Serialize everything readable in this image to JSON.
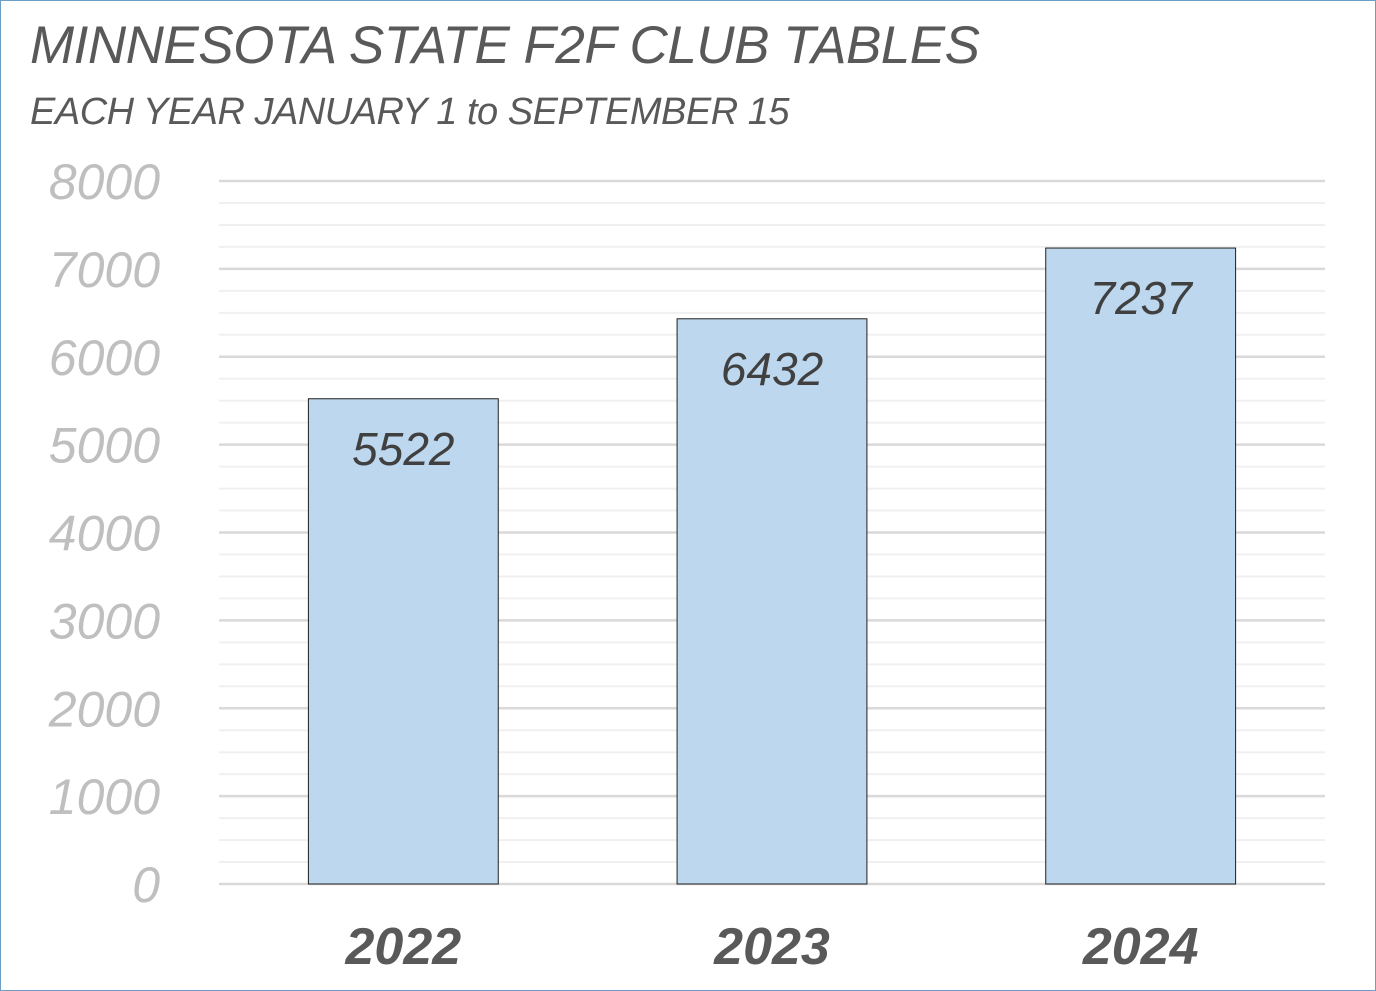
{
  "chart_data": {
    "type": "bar",
    "title": "MINNESOTA STATE F2F CLUB TABLES",
    "subtitle": "EACH YEAR JANUARY 1 to SEPTEMBER 15",
    "xlabel": "",
    "ylabel": "",
    "categories": [
      "2022",
      "2023",
      "2024"
    ],
    "values": [
      5522,
      6432,
      7237
    ],
    "data_labels": [
      "5522",
      "6432",
      "7237"
    ],
    "ylim": [
      0,
      8000
    ],
    "yticks": [
      0,
      1000,
      2000,
      3000,
      4000,
      5000,
      6000,
      7000,
      8000
    ],
    "ytick_labels": [
      "0",
      "1000",
      "2000",
      "3000",
      "4000",
      "5000",
      "6000",
      "7000",
      "8000"
    ],
    "minor_gridline_step": 250,
    "grid": true,
    "legend": "none",
    "colors": {
      "bar_fill": "#bdd7ee",
      "bar_stroke": "#1f1f1f",
      "major_grid": "#d9d9d9",
      "minor_grid": "#f0f0f0",
      "title_text": "#595959",
      "ytick_text": "#bfbfbf",
      "frame_border": "#6c9ec8"
    }
  }
}
